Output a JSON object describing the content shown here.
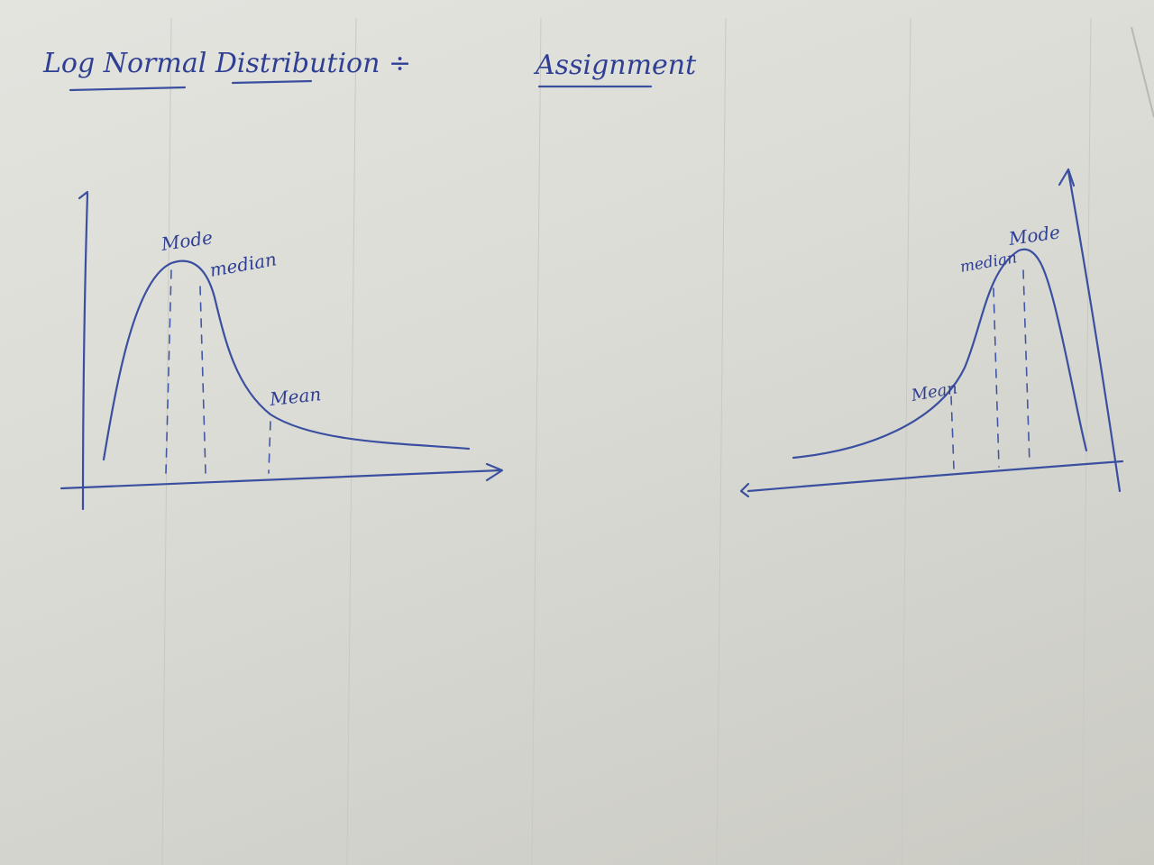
{
  "title_left": "Log Normal Distribution ÷",
  "title_right": "Assignment",
  "left_graph": {
    "labels": {
      "mode": "Mode",
      "median": "median",
      "mean": "Mean"
    }
  },
  "right_graph": {
    "labels": {
      "mode": "Mode",
      "median": "median",
      "mean": "Mean"
    }
  }
}
